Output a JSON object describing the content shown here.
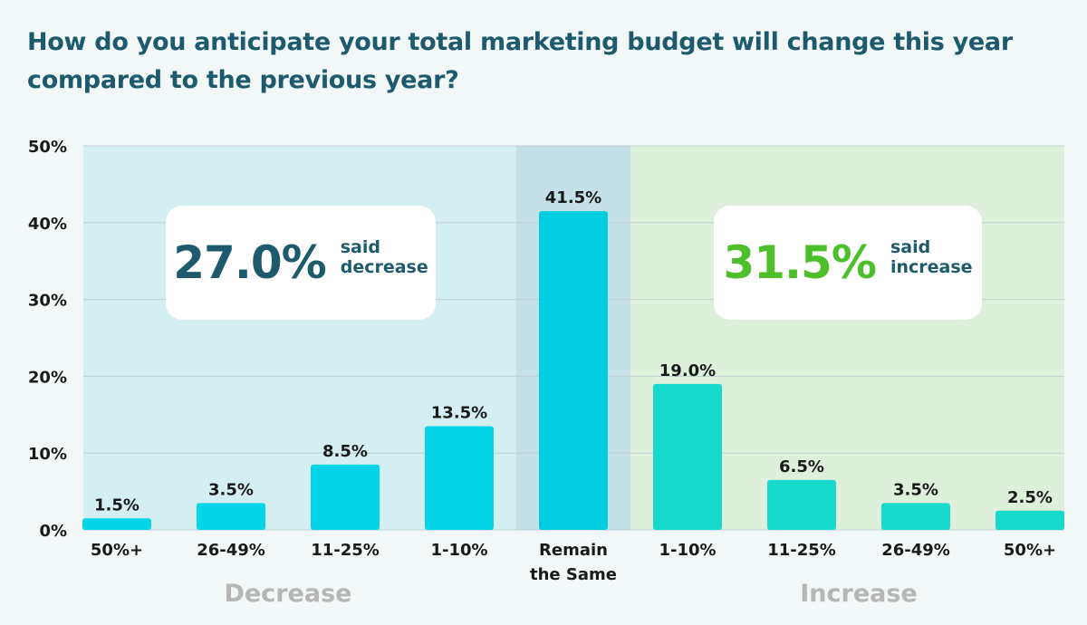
{
  "title": "How do you anticipate your total marketing budget will change this year compared to the previous year?",
  "callouts": {
    "decrease": {
      "value": "27.0%",
      "label": "said\ndecrease"
    },
    "increase": {
      "value": "31.5%",
      "label": "said\nincrease"
    }
  },
  "colors": {
    "decrease_bg": "#d3eff2",
    "same_bg": "#c4e1e7",
    "increase_bg": "#def0dc",
    "decrease_bar": "#05d5e6",
    "same_bar": "#00cde0",
    "increase_bar": "#17d9cc",
    "title": "#1e5a6e",
    "increase_accent": "#4cbf2a",
    "group_label": "#b6b6b6",
    "grid": "#bfcfd2",
    "text": "#1a1a1a"
  },
  "chart_data": {
    "type": "bar",
    "categories": [
      "50%+",
      "26-49%",
      "11-25%",
      "1-10%",
      "Remain\nthe Same",
      "1-10%",
      "11-25%",
      "26-49%",
      "50%+"
    ],
    "values": [
      1.5,
      3.5,
      8.5,
      13.5,
      41.5,
      19.0,
      6.5,
      3.5,
      2.5
    ],
    "value_labels": [
      "1.5%",
      "3.5%",
      "8.5%",
      "13.5%",
      "41.5%",
      "19.0%",
      "6.5%",
      "3.5%",
      "2.5%"
    ],
    "groups": [
      "decrease",
      "decrease",
      "decrease",
      "decrease",
      "same",
      "increase",
      "increase",
      "increase",
      "increase"
    ],
    "group_labels": {
      "decrease": "Decrease",
      "increase": "Increase"
    },
    "ylim": [
      0,
      50
    ],
    "yticks": [
      0,
      10,
      20,
      30,
      40,
      50
    ],
    "ytick_labels": [
      "0%",
      "10%",
      "20%",
      "30%",
      "40%",
      "50%"
    ],
    "grid": true,
    "xlabel": "",
    "ylabel": ""
  }
}
